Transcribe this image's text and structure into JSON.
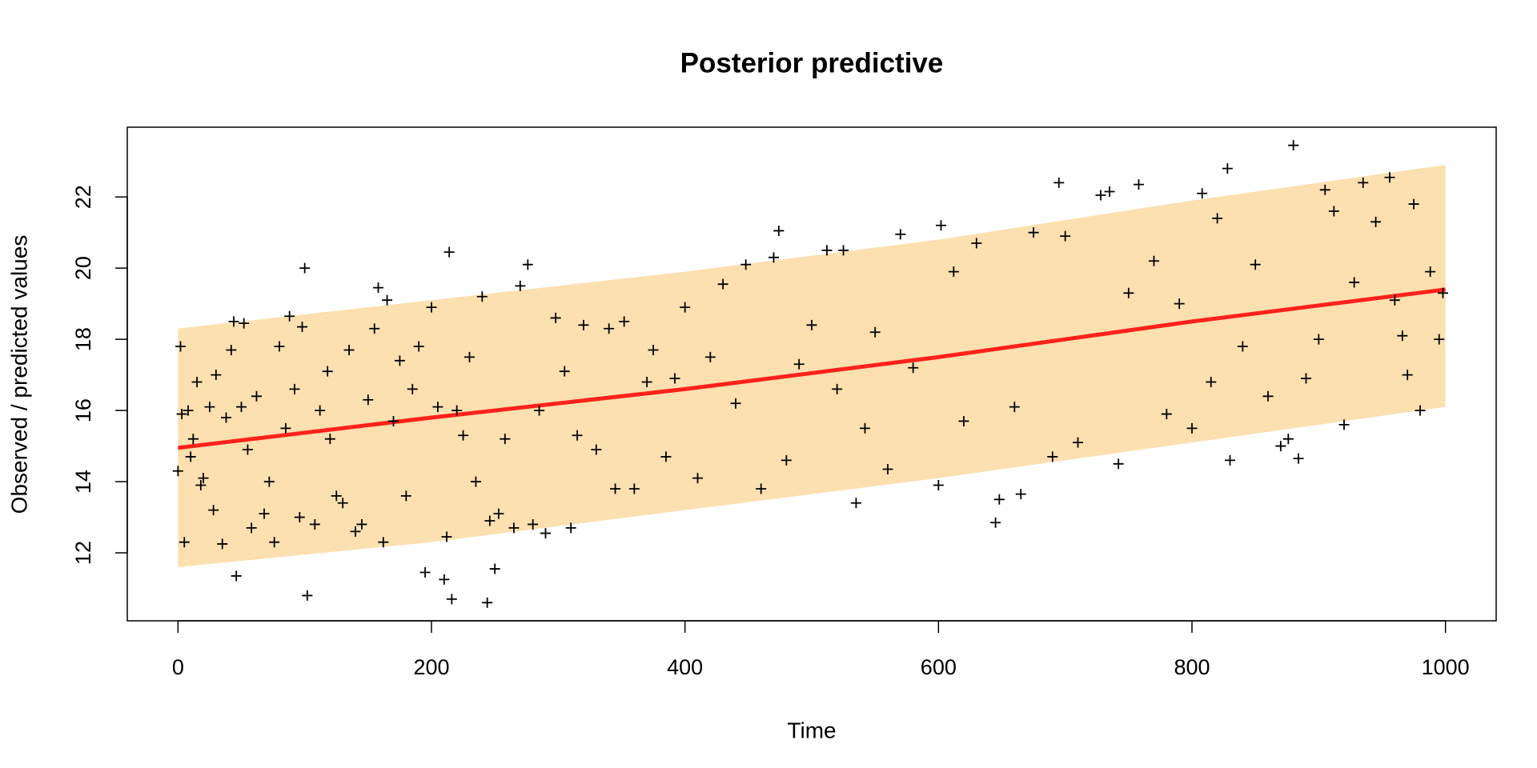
{
  "chart_data": {
    "type": "scatter",
    "title": "Posterior predictive",
    "x_label": "Time",
    "y_label": "Observed / predicted values",
    "xlim": [
      -40,
      1040
    ],
    "ylim": [
      10.09,
      23.96
    ],
    "xticks": [
      0,
      200,
      400,
      600,
      800,
      1000
    ],
    "yticks": [
      12,
      14,
      16,
      18,
      20,
      22
    ],
    "band": {
      "color": "#fde0b0",
      "x": [
        0,
        200,
        400,
        600,
        800,
        1000
      ],
      "lower": [
        11.6,
        12.3,
        13.2,
        14.1,
        15.1,
        16.1
      ],
      "upper": [
        18.3,
        19.1,
        19.9,
        20.8,
        21.9,
        22.9
      ]
    },
    "line": {
      "color": "#ff0000",
      "x": [
        0,
        200,
        400,
        600,
        800,
        1000
      ],
      "values": [
        14.95,
        15.8,
        16.6,
        17.5,
        18.5,
        19.4
      ]
    },
    "points": {
      "color": "#000000",
      "x": [
        0,
        2,
        3,
        5,
        8,
        10,
        12,
        15,
        18,
        20,
        25,
        28,
        30,
        35,
        38,
        42,
        44,
        46,
        50,
        52,
        55,
        58,
        62,
        68,
        72,
        76,
        80,
        85,
        88,
        92,
        96,
        98,
        100,
        102,
        108,
        112,
        118,
        120,
        125,
        130,
        135,
        140,
        145,
        150,
        155,
        158,
        162,
        165,
        170,
        175,
        180,
        185,
        190,
        195,
        200,
        205,
        210,
        212,
        214,
        216,
        220,
        225,
        230,
        235,
        240,
        244,
        246,
        250,
        253,
        258,
        265,
        270,
        276,
        280,
        285,
        290,
        298,
        305,
        310,
        315,
        320,
        330,
        340,
        345,
        352,
        360,
        370,
        375,
        385,
        392,
        400,
        410,
        420,
        430,
        440,
        448,
        460,
        470,
        474,
        480,
        490,
        500,
        512,
        520,
        525,
        535,
        542,
        550,
        560,
        570,
        580,
        600,
        602,
        612,
        620,
        630,
        645,
        648,
        660,
        665,
        675,
        690,
        695,
        700,
        710,
        728,
        735,
        742,
        750,
        758,
        770,
        780,
        790,
        800,
        808,
        815,
        820,
        828,
        830,
        840,
        850,
        860,
        870,
        876,
        880,
        884,
        890,
        900,
        905,
        912,
        920,
        928,
        935,
        945,
        956,
        960,
        966,
        970,
        975,
        980,
        988,
        995,
        998
      ],
      "y": [
        14.3,
        17.8,
        15.9,
        12.3,
        16,
        14.7,
        15.2,
        16.8,
        13.9,
        14.1,
        16.1,
        13.2,
        17,
        12.25,
        15.8,
        17.7,
        18.5,
        11.35,
        16.1,
        18.45,
        14.9,
        12.7,
        16.4,
        13.1,
        14,
        12.3,
        17.8,
        15.5,
        18.65,
        16.6,
        13,
        18.35,
        20,
        10.8,
        12.8,
        16,
        17.1,
        15.2,
        13.6,
        13.4,
        17.7,
        12.6,
        12.8,
        16.3,
        18.3,
        19.45,
        12.3,
        19.1,
        15.7,
        17.4,
        13.6,
        16.6,
        17.8,
        11.45,
        18.9,
        16.1,
        11.25,
        12.45,
        20.45,
        10.7,
        16,
        15.3,
        17.5,
        14,
        19.2,
        10.6,
        12.9,
        11.55,
        13.1,
        15.2,
        12.7,
        19.5,
        20.1,
        12.8,
        16,
        12.55,
        18.6,
        17.1,
        12.7,
        15.3,
        18.4,
        14.9,
        18.3,
        13.8,
        18.5,
        13.8,
        16.8,
        17.7,
        14.7,
        16.9,
        18.9,
        14.1,
        17.5,
        19.55,
        16.2,
        20.1,
        13.8,
        20.3,
        21.05,
        14.6,
        17.3,
        18.4,
        20.5,
        16.6,
        20.5,
        13.4,
        15.5,
        18.2,
        14.35,
        20.95,
        17.2,
        13.9,
        21.2,
        19.9,
        15.7,
        20.7,
        12.85,
        13.5,
        16.1,
        13.65,
        21,
        14.7,
        22.4,
        20.9,
        15.1,
        22.05,
        22.15,
        14.5,
        19.3,
        22.35,
        20.2,
        15.9,
        19,
        15.5,
        22.1,
        16.8,
        21.4,
        22.8,
        14.6,
        17.8,
        20.1,
        16.4,
        15,
        15.2,
        23.45,
        14.65,
        16.9,
        18,
        22.2,
        21.6,
        15.6,
        19.6,
        22.4,
        21.3,
        22.55,
        19.1,
        18.1,
        17,
        21.8,
        16,
        19.9,
        18,
        19.3
      ]
    }
  }
}
